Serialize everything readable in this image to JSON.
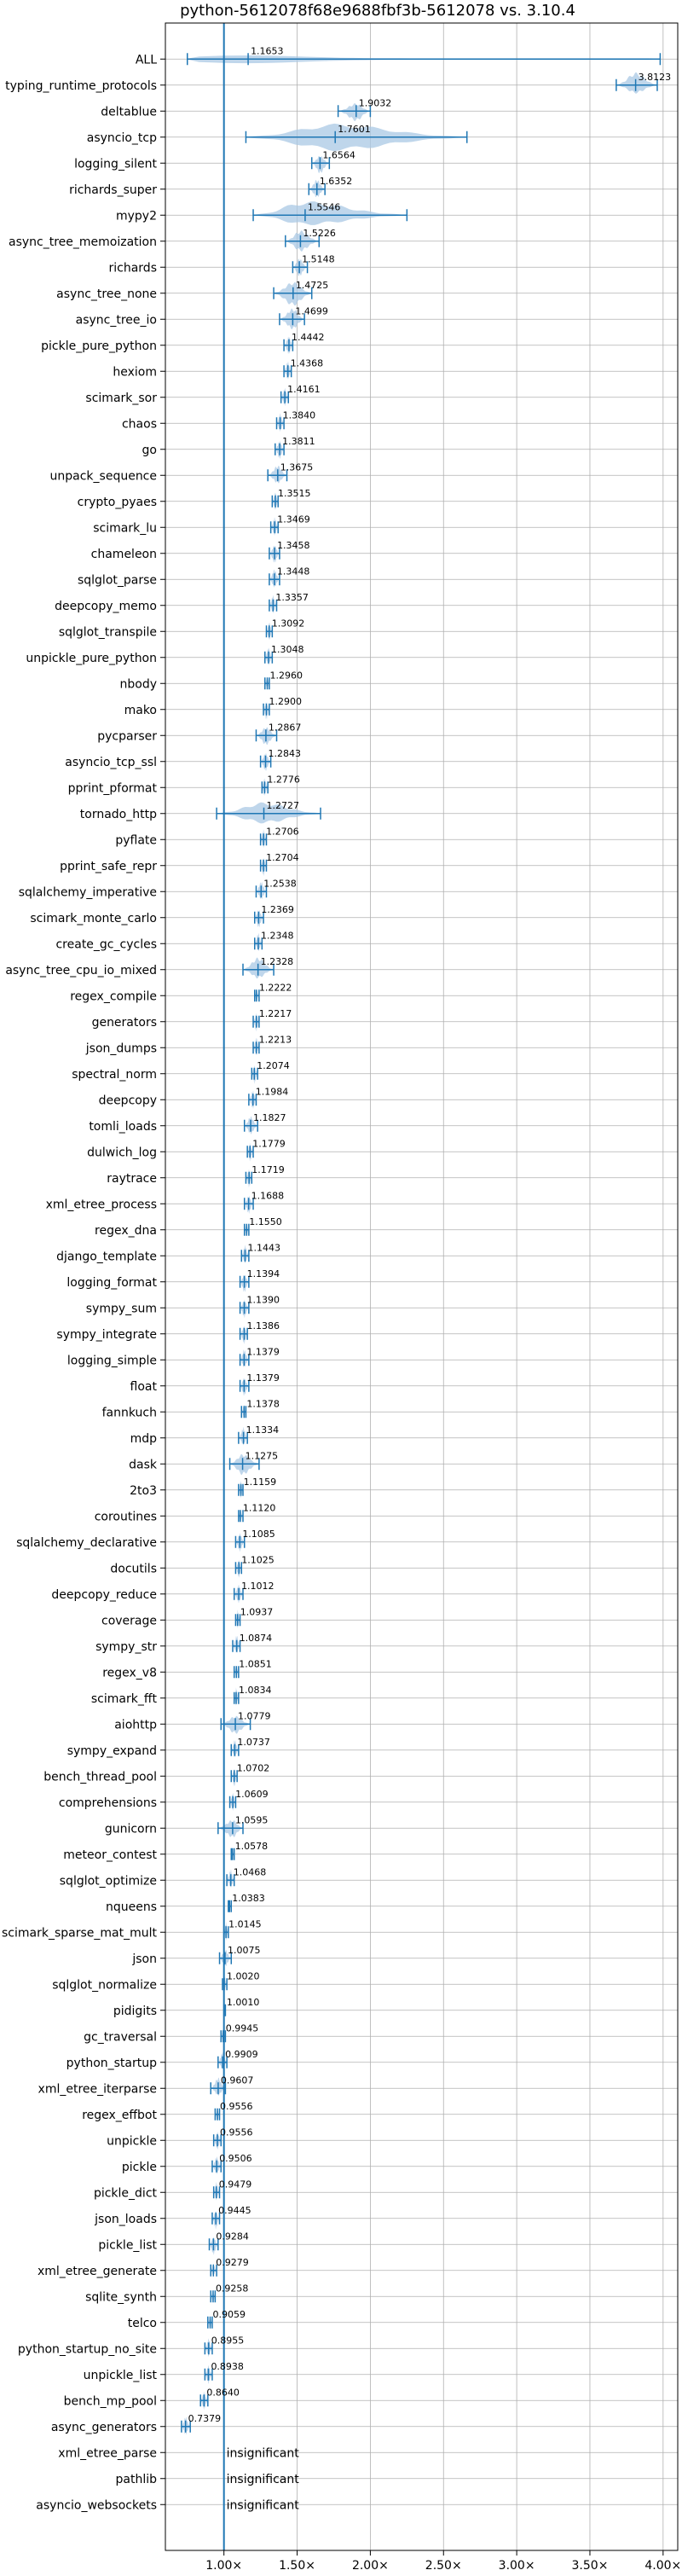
{
  "chart_data": {
    "type": "violin",
    "title": "python-5612078f68e9688fbf3b-5612078 vs. 3.10.4",
    "xlabel": "",
    "ylabel": "",
    "xlim": [
      0.6,
      4.1
    ],
    "xticks": [
      1.0,
      1.5,
      2.0,
      2.5,
      3.0,
      3.5,
      4.0
    ],
    "xtick_labels": [
      "1.00×",
      "1.50×",
      "2.00×",
      "2.50×",
      "3.00×",
      "3.50×",
      "4.00×"
    ],
    "grid": true,
    "reference_line": 1.0,
    "colors": {
      "violin": "#a9c8e4",
      "line": "#1f77b4",
      "ref": "#1f77b4"
    },
    "insignificant_label": "insignificant",
    "benchmarks": [
      {
        "name": "ALL",
        "value": 1.1653,
        "label": "1.1653",
        "lo": 0.75,
        "hi": 3.98,
        "w": 0.15,
        "type": "dist"
      },
      {
        "name": "typing_runtime_protocols",
        "value": 3.8123,
        "label": "3.8123",
        "lo": 3.68,
        "hi": 3.96,
        "w": 0.35
      },
      {
        "name": "deltablue",
        "value": 1.9032,
        "label": "1.9032",
        "lo": 1.78,
        "hi": 2.0,
        "w": 0.3
      },
      {
        "name": "asyncio_tcp",
        "value": 1.7601,
        "label": "1.7601",
        "lo": 1.15,
        "hi": 2.66,
        "w": 0.45
      },
      {
        "name": "logging_silent",
        "value": 1.6564,
        "label": "1.6564",
        "lo": 1.6,
        "hi": 1.72,
        "w": 0.3
      },
      {
        "name": "richards_super",
        "value": 1.6352,
        "label": "1.6352",
        "lo": 1.58,
        "hi": 1.69,
        "w": 0.3
      },
      {
        "name": "mypy2",
        "value": 1.5546,
        "label": "1.5546",
        "lo": 1.2,
        "hi": 2.25,
        "w": 0.4
      },
      {
        "name": "async_tree_memoization",
        "value": 1.5226,
        "label": "1.5226",
        "lo": 1.42,
        "hi": 1.65,
        "w": 0.35
      },
      {
        "name": "richards",
        "value": 1.5148,
        "label": "1.5148",
        "lo": 1.47,
        "hi": 1.57,
        "w": 0.3
      },
      {
        "name": "async_tree_none",
        "value": 1.4725,
        "label": "1.4725",
        "lo": 1.34,
        "hi": 1.6,
        "w": 0.4
      },
      {
        "name": "async_tree_io",
        "value": 1.4699,
        "label": "1.4699",
        "lo": 1.38,
        "hi": 1.55,
        "w": 0.35
      },
      {
        "name": "pickle_pure_python",
        "value": 1.4442,
        "label": "1.4442",
        "lo": 1.41,
        "hi": 1.47,
        "w": 0.3
      },
      {
        "name": "hexiom",
        "value": 1.4368,
        "label": "1.4368",
        "lo": 1.41,
        "hi": 1.46,
        "w": 0.3
      },
      {
        "name": "scimark_sor",
        "value": 1.4161,
        "label": "1.4161",
        "lo": 1.39,
        "hi": 1.44,
        "w": 0.3
      },
      {
        "name": "chaos",
        "value": 1.384,
        "label": "1.3840",
        "lo": 1.36,
        "hi": 1.41,
        "w": 0.3
      },
      {
        "name": "go",
        "value": 1.3811,
        "label": "1.3811",
        "lo": 1.35,
        "hi": 1.41,
        "w": 0.3
      },
      {
        "name": "unpack_sequence",
        "value": 1.3675,
        "label": "1.3675",
        "lo": 1.3,
        "hi": 1.43,
        "w": 0.3
      },
      {
        "name": "crypto_pyaes",
        "value": 1.3515,
        "label": "1.3515",
        "lo": 1.33,
        "hi": 1.37,
        "w": 0.3
      },
      {
        "name": "scimark_lu",
        "value": 1.3469,
        "label": "1.3469",
        "lo": 1.32,
        "hi": 1.37,
        "w": 0.3
      },
      {
        "name": "chameleon",
        "value": 1.3458,
        "label": "1.3458",
        "lo": 1.31,
        "hi": 1.38,
        "w": 0.3
      },
      {
        "name": "sqlglot_parse",
        "value": 1.3448,
        "label": "1.3448",
        "lo": 1.31,
        "hi": 1.38,
        "w": 0.3
      },
      {
        "name": "deepcopy_memo",
        "value": 1.3357,
        "label": "1.3357",
        "lo": 1.31,
        "hi": 1.36,
        "w": 0.3
      },
      {
        "name": "sqlglot_transpile",
        "value": 1.3092,
        "label": "1.3092",
        "lo": 1.29,
        "hi": 1.33,
        "w": 0.3
      },
      {
        "name": "unpickle_pure_python",
        "value": 1.3048,
        "label": "1.3048",
        "lo": 1.28,
        "hi": 1.33,
        "w": 0.3
      },
      {
        "name": "nbody",
        "value": 1.296,
        "label": "1.2960",
        "lo": 1.28,
        "hi": 1.31,
        "w": 0.2
      },
      {
        "name": "mako",
        "value": 1.29,
        "label": "1.2900",
        "lo": 1.27,
        "hi": 1.31,
        "w": 0.3
      },
      {
        "name": "pycparser",
        "value": 1.2867,
        "label": "1.2867",
        "lo": 1.22,
        "hi": 1.36,
        "w": 0.3
      },
      {
        "name": "asyncio_tcp_ssl",
        "value": 1.2843,
        "label": "1.2843",
        "lo": 1.25,
        "hi": 1.32,
        "w": 0.3
      },
      {
        "name": "pprint_pformat",
        "value": 1.2776,
        "label": "1.2776",
        "lo": 1.26,
        "hi": 1.3,
        "w": 0.3
      },
      {
        "name": "tornado_http",
        "value": 1.2727,
        "label": "1.2727",
        "lo": 0.95,
        "hi": 1.66,
        "w": 0.35
      },
      {
        "name": "pyflate",
        "value": 1.2706,
        "label": "1.2706",
        "lo": 1.25,
        "hi": 1.29,
        "w": 0.3
      },
      {
        "name": "pprint_safe_repr",
        "value": 1.2704,
        "label": "1.2704",
        "lo": 1.25,
        "hi": 1.29,
        "w": 0.3
      },
      {
        "name": "sqlalchemy_imperative",
        "value": 1.2538,
        "label": "1.2538",
        "lo": 1.22,
        "hi": 1.29,
        "w": 0.3
      },
      {
        "name": "scimark_monte_carlo",
        "value": 1.2369,
        "label": "1.2369",
        "lo": 1.21,
        "hi": 1.27,
        "w": 0.3
      },
      {
        "name": "create_gc_cycles",
        "value": 1.2348,
        "label": "1.2348",
        "lo": 1.21,
        "hi": 1.26,
        "w": 0.3
      },
      {
        "name": "async_tree_cpu_io_mixed",
        "value": 1.2328,
        "label": "1.2328",
        "lo": 1.13,
        "hi": 1.34,
        "w": 0.35
      },
      {
        "name": "regex_compile",
        "value": 1.2222,
        "label": "1.2222",
        "lo": 1.21,
        "hi": 1.24,
        "w": 0.2
      },
      {
        "name": "generators",
        "value": 1.2217,
        "label": "1.2217",
        "lo": 1.2,
        "hi": 1.24,
        "w": 0.3
      },
      {
        "name": "json_dumps",
        "value": 1.2213,
        "label": "1.2213",
        "lo": 1.2,
        "hi": 1.24,
        "w": 0.3
      },
      {
        "name": "spectral_norm",
        "value": 1.2074,
        "label": "1.2074",
        "lo": 1.19,
        "hi": 1.23,
        "w": 0.3
      },
      {
        "name": "deepcopy",
        "value": 1.1984,
        "label": "1.1984",
        "lo": 1.17,
        "hi": 1.22,
        "w": 0.3
      },
      {
        "name": "tomli_loads",
        "value": 1.1827,
        "label": "1.1827",
        "lo": 1.14,
        "hi": 1.23,
        "w": 0.3
      },
      {
        "name": "dulwich_log",
        "value": 1.1779,
        "label": "1.1779",
        "lo": 1.16,
        "hi": 1.2,
        "w": 0.3
      },
      {
        "name": "raytrace",
        "value": 1.1719,
        "label": "1.1719",
        "lo": 1.15,
        "hi": 1.19,
        "w": 0.3
      },
      {
        "name": "xml_etree_process",
        "value": 1.1688,
        "label": "1.1688",
        "lo": 1.14,
        "hi": 1.2,
        "w": 0.3
      },
      {
        "name": "regex_dna",
        "value": 1.155,
        "label": "1.1550",
        "lo": 1.14,
        "hi": 1.17,
        "w": 0.2
      },
      {
        "name": "django_template",
        "value": 1.1443,
        "label": "1.1443",
        "lo": 1.12,
        "hi": 1.17,
        "w": 0.3
      },
      {
        "name": "logging_format",
        "value": 1.1394,
        "label": "1.1394",
        "lo": 1.11,
        "hi": 1.17,
        "w": 0.3
      },
      {
        "name": "sympy_sum",
        "value": 1.139,
        "label": "1.1390",
        "lo": 1.11,
        "hi": 1.17,
        "w": 0.3
      },
      {
        "name": "sympy_integrate",
        "value": 1.1386,
        "label": "1.1386",
        "lo": 1.11,
        "hi": 1.16,
        "w": 0.3
      },
      {
        "name": "logging_simple",
        "value": 1.1379,
        "label": "1.1379",
        "lo": 1.11,
        "hi": 1.17,
        "w": 0.3
      },
      {
        "name": "float",
        "value": 1.1379,
        "label": "1.1379",
        "lo": 1.11,
        "hi": 1.17,
        "w": 0.3
      },
      {
        "name": "fannkuch",
        "value": 1.1378,
        "label": "1.1378",
        "lo": 1.12,
        "hi": 1.15,
        "w": 0.2
      },
      {
        "name": "mdp",
        "value": 1.1334,
        "label": "1.1334",
        "lo": 1.1,
        "hi": 1.16,
        "w": 0.3
      },
      {
        "name": "dask",
        "value": 1.1275,
        "label": "1.1275",
        "lo": 1.04,
        "hi": 1.24,
        "w": 0.35
      },
      {
        "name": "2to3",
        "value": 1.1159,
        "label": "1.1159",
        "lo": 1.1,
        "hi": 1.13,
        "w": 0.3
      },
      {
        "name": "coroutines",
        "value": 1.112,
        "label": "1.1120",
        "lo": 1.1,
        "hi": 1.13,
        "w": 0.2
      },
      {
        "name": "sqlalchemy_declarative",
        "value": 1.1085,
        "label": "1.1085",
        "lo": 1.08,
        "hi": 1.14,
        "w": 0.3
      },
      {
        "name": "docutils",
        "value": 1.1025,
        "label": "1.1025",
        "lo": 1.08,
        "hi": 1.12,
        "w": 0.3
      },
      {
        "name": "deepcopy_reduce",
        "value": 1.1012,
        "label": "1.1012",
        "lo": 1.07,
        "hi": 1.13,
        "w": 0.3
      },
      {
        "name": "coverage",
        "value": 1.0937,
        "label": "1.0937",
        "lo": 1.08,
        "hi": 1.11,
        "w": 0.3
      },
      {
        "name": "sympy_str",
        "value": 1.0874,
        "label": "1.0874",
        "lo": 1.06,
        "hi": 1.11,
        "w": 0.3
      },
      {
        "name": "regex_v8",
        "value": 1.0851,
        "label": "1.0851",
        "lo": 1.07,
        "hi": 1.1,
        "w": 0.2
      },
      {
        "name": "scimark_fft",
        "value": 1.0834,
        "label": "1.0834",
        "lo": 1.07,
        "hi": 1.1,
        "w": 0.3
      },
      {
        "name": "aiohttp",
        "value": 1.0779,
        "label": "1.0779",
        "lo": 0.98,
        "hi": 1.18,
        "w": 0.3
      },
      {
        "name": "sympy_expand",
        "value": 1.0737,
        "label": "1.0737",
        "lo": 1.05,
        "hi": 1.1,
        "w": 0.3
      },
      {
        "name": "bench_thread_pool",
        "value": 1.0702,
        "label": "1.0702",
        "lo": 1.05,
        "hi": 1.09,
        "w": 0.3
      },
      {
        "name": "comprehensions",
        "value": 1.0609,
        "label": "1.0609",
        "lo": 1.04,
        "hi": 1.08,
        "w": 0.3
      },
      {
        "name": "gunicorn",
        "value": 1.0595,
        "label": "1.0595",
        "lo": 0.96,
        "hi": 1.13,
        "w": 0.3
      },
      {
        "name": "meteor_contest",
        "value": 1.0578,
        "label": "1.0578",
        "lo": 1.05,
        "hi": 1.07,
        "w": 0.2
      },
      {
        "name": "sqlglot_optimize",
        "value": 1.0468,
        "label": "1.0468",
        "lo": 1.02,
        "hi": 1.07,
        "w": 0.3
      },
      {
        "name": "nqueens",
        "value": 1.0383,
        "label": "1.0383",
        "lo": 1.03,
        "hi": 1.05,
        "w": 0.2
      },
      {
        "name": "scimark_sparse_mat_mult",
        "value": 1.0145,
        "label": "1.0145",
        "lo": 1.0,
        "hi": 1.03,
        "w": 0.3
      },
      {
        "name": "json",
        "value": 1.0075,
        "label": "1.0075",
        "lo": 0.97,
        "hi": 1.05,
        "w": 0.3
      },
      {
        "name": "sqlglot_normalize",
        "value": 1.002,
        "label": "1.0020",
        "lo": 0.99,
        "hi": 1.02,
        "w": 0.3
      },
      {
        "name": "pidigits",
        "value": 1.001,
        "label": "1.0010",
        "lo": 1.0,
        "hi": 1.01,
        "w": 0.15
      },
      {
        "name": "gc_traversal",
        "value": 0.9945,
        "label": "0.9945",
        "lo": 0.98,
        "hi": 1.01,
        "w": 0.2
      },
      {
        "name": "python_startup",
        "value": 0.9909,
        "label": "0.9909",
        "lo": 0.96,
        "hi": 1.02,
        "w": 0.3
      },
      {
        "name": "xml_etree_iterparse",
        "value": 0.9607,
        "label": "0.9607",
        "lo": 0.91,
        "hi": 1.01,
        "w": 0.3
      },
      {
        "name": "regex_effbot",
        "value": 0.9556,
        "label": "0.9556",
        "lo": 0.94,
        "hi": 0.97,
        "w": 0.2
      },
      {
        "name": "unpickle",
        "value": 0.9556,
        "label": "0.9556",
        "lo": 0.93,
        "hi": 0.98,
        "w": 0.3
      },
      {
        "name": "pickle",
        "value": 0.9506,
        "label": "0.9506",
        "lo": 0.92,
        "hi": 0.98,
        "w": 0.3
      },
      {
        "name": "pickle_dict",
        "value": 0.9479,
        "label": "0.9479",
        "lo": 0.93,
        "hi": 0.97,
        "w": 0.3
      },
      {
        "name": "json_loads",
        "value": 0.9445,
        "label": "0.9445",
        "lo": 0.92,
        "hi": 0.97,
        "w": 0.3
      },
      {
        "name": "pickle_list",
        "value": 0.9284,
        "label": "0.9284",
        "lo": 0.9,
        "hi": 0.96,
        "w": 0.3
      },
      {
        "name": "xml_etree_generate",
        "value": 0.9279,
        "label": "0.9279",
        "lo": 0.91,
        "hi": 0.95,
        "w": 0.2
      },
      {
        "name": "sqlite_synth",
        "value": 0.9258,
        "label": "0.9258",
        "lo": 0.91,
        "hi": 0.94,
        "w": 0.2
      },
      {
        "name": "telco",
        "value": 0.9059,
        "label": "0.9059",
        "lo": 0.89,
        "hi": 0.92,
        "w": 0.2
      },
      {
        "name": "python_startup_no_site",
        "value": 0.8955,
        "label": "0.8955",
        "lo": 0.87,
        "hi": 0.92,
        "w": 0.3
      },
      {
        "name": "unpickle_list",
        "value": 0.8938,
        "label": "0.8938",
        "lo": 0.87,
        "hi": 0.92,
        "w": 0.3
      },
      {
        "name": "bench_mp_pool",
        "value": 0.864,
        "label": "0.8640",
        "lo": 0.84,
        "hi": 0.89,
        "w": 0.3
      },
      {
        "name": "async_generators",
        "value": 0.7379,
        "label": "0.7379",
        "lo": 0.71,
        "hi": 0.77,
        "w": 0.3
      },
      {
        "name": "xml_etree_parse",
        "insignificant": true
      },
      {
        "name": "pathlib",
        "insignificant": true
      },
      {
        "name": "asyncio_websockets",
        "insignificant": true
      }
    ]
  }
}
